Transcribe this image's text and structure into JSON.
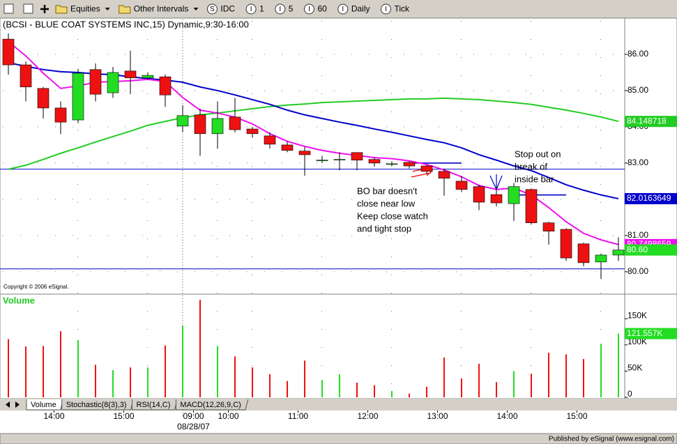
{
  "toolbar": [
    {
      "label": "Equities"
    },
    {
      "label": "Other Intervals"
    },
    {
      "icon": "S",
      "label": "IDC"
    },
    {
      "icon": "I",
      "label": "1"
    },
    {
      "icon": "I",
      "label": "5"
    },
    {
      "icon": "I",
      "label": "60"
    },
    {
      "icon": "I",
      "label": "Daily"
    },
    {
      "icon": "I",
      "label": "Tick"
    }
  ],
  "tabs": [
    "Volume",
    "Stochastic(8(3),3)",
    "RSI(14,C)",
    "MACD(12,26,9,C)"
  ],
  "status": "Published by eSignal (www.esignal.com)",
  "copyright": "Copyright © 2006 eSignal.",
  "chart_data": {
    "type": "candlestick",
    "title": "(BCSI - BLUE COAT SYSTEMS INC,15) Dynamic,9:30-16:00",
    "up_color": "#22dd22",
    "down_color": "#ee1111",
    "categories": [
      null,
      null,
      null,
      "14:00",
      null,
      null,
      null,
      "15:00",
      null,
      null,
      null,
      "09:00",
      null,
      "10:00",
      null,
      null,
      null,
      "11:00",
      null,
      null,
      null,
      "12:00",
      null,
      null,
      null,
      "13:00",
      null,
      null,
      null,
      "14:00",
      null,
      null,
      null,
      "15:00",
      null,
      null
    ],
    "date_label": "08/28/07",
    "candles": [
      {
        "open": 86.42,
        "high": 86.58,
        "low": 85.44,
        "close": 85.71
      },
      {
        "open": 85.71,
        "high": 85.8,
        "low": 84.7,
        "close": 85.1
      },
      {
        "open": 85.06,
        "high": 85.1,
        "low": 84.23,
        "close": 84.52
      },
      {
        "open": 84.52,
        "high": 84.7,
        "low": 83.8,
        "close": 84.13
      },
      {
        "open": 84.19,
        "high": 85.6,
        "low": 84.1,
        "close": 85.48
      },
      {
        "open": 85.58,
        "high": 85.75,
        "low": 84.7,
        "close": 84.9
      },
      {
        "open": 84.94,
        "high": 85.65,
        "low": 84.8,
        "close": 85.5
      },
      {
        "open": 85.54,
        "high": 86.1,
        "low": 84.9,
        "close": 85.35
      },
      {
        "open": 85.35,
        "high": 85.5,
        "low": 85.3,
        "close": 85.42
      },
      {
        "open": 85.38,
        "high": 85.45,
        "low": 84.55,
        "close": 84.88
      },
      {
        "open": 84.02,
        "high": 84.6,
        "low": 83.85,
        "close": 84.31
      },
      {
        "open": 84.33,
        "high": 84.5,
        "low": 83.2,
        "close": 83.81
      },
      {
        "open": 83.81,
        "high": 84.7,
        "low": 83.4,
        "close": 84.23
      },
      {
        "open": 84.27,
        "high": 84.8,
        "low": 83.85,
        "close": 83.92
      },
      {
        "open": 83.94,
        "high": 84.0,
        "low": 83.7,
        "close": 83.81
      },
      {
        "open": 83.75,
        "high": 83.85,
        "low": 83.4,
        "close": 83.52
      },
      {
        "open": 83.5,
        "high": 83.6,
        "low": 83.3,
        "close": 83.35
      },
      {
        "open": 83.33,
        "high": 83.45,
        "low": 82.65,
        "close": 83.23
      },
      {
        "open": 83.08,
        "high": 83.2,
        "low": 83.0,
        "close": 83.08
      },
      {
        "open": 83.1,
        "high": 83.3,
        "low": 82.8,
        "close": 83.1
      },
      {
        "open": 83.29,
        "high": 83.3,
        "low": 82.8,
        "close": 83.08
      },
      {
        "open": 83.1,
        "high": 83.15,
        "low": 82.9,
        "close": 83.0
      },
      {
        "open": 82.98,
        "high": 83.05,
        "low": 82.92,
        "close": 82.98
      },
      {
        "open": 83.02,
        "high": 83.05,
        "low": 82.85,
        "close": 82.92
      },
      {
        "open": 82.92,
        "high": 82.95,
        "low": 82.7,
        "close": 82.77
      },
      {
        "open": 82.77,
        "high": 82.85,
        "low": 82.1,
        "close": 82.58
      },
      {
        "open": 82.5,
        "high": 82.65,
        "low": 82.2,
        "close": 82.27
      },
      {
        "open": 82.35,
        "high": 82.4,
        "low": 81.7,
        "close": 81.92
      },
      {
        "open": 82.13,
        "high": 82.4,
        "low": 81.8,
        "close": 81.9
      },
      {
        "open": 81.88,
        "high": 82.45,
        "low": 81.4,
        "close": 82.35
      },
      {
        "open": 82.27,
        "high": 82.3,
        "low": 81.3,
        "close": 81.35
      },
      {
        "open": 81.35,
        "high": 81.38,
        "low": 80.75,
        "close": 81.12
      },
      {
        "open": 81.17,
        "high": 81.2,
        "low": 80.3,
        "close": 80.38
      },
      {
        "open": 80.77,
        "high": 80.8,
        "low": 80.15,
        "close": 80.25
      },
      {
        "open": 80.27,
        "high": 80.5,
        "low": 79.8,
        "close": 80.46
      },
      {
        "open": 80.46,
        "high": 80.95,
        "low": 80.3,
        "close": 80.6
      }
    ],
    "last_close_label": "80.60",
    "averages": [
      {
        "color": "#22cc22",
        "last_label": "84.148718",
        "values": [
          82.83,
          82.94,
          83.1,
          83.27,
          83.42,
          83.58,
          83.73,
          83.88,
          84.04,
          84.15,
          84.25,
          84.33,
          84.38,
          84.44,
          84.5,
          84.56,
          84.6,
          84.63,
          84.67,
          84.69,
          84.71,
          84.73,
          84.75,
          84.77,
          84.77,
          84.79,
          84.77,
          84.75,
          84.71,
          84.67,
          84.62,
          84.54,
          84.46,
          84.37,
          84.27,
          84.148718
        ]
      },
      {
        "color": "#0000cc",
        "last_label": "82.0163649",
        "values": [
          85.77,
          85.67,
          85.58,
          85.52,
          85.5,
          85.46,
          85.44,
          85.38,
          85.33,
          85.29,
          85.23,
          85.1,
          85.0,
          84.88,
          84.75,
          84.62,
          84.46,
          84.33,
          84.23,
          84.13,
          84.04,
          83.94,
          83.85,
          83.75,
          83.65,
          83.56,
          83.42,
          83.23,
          83.08,
          82.92,
          82.79,
          82.6,
          82.4,
          82.25,
          82.12,
          82.0163649
        ]
      },
      {
        "color": "#ee11ee",
        "last_label": "80.7498659",
        "values": [
          86.35,
          85.96,
          85.48,
          85.06,
          85.13,
          85.23,
          85.25,
          85.27,
          85.31,
          85.25,
          84.81,
          84.46,
          84.38,
          84.27,
          84.08,
          83.81,
          83.6,
          83.46,
          83.35,
          83.27,
          83.21,
          83.15,
          83.12,
          83.06,
          82.96,
          82.81,
          82.62,
          82.38,
          82.27,
          82.31,
          82.12,
          81.77,
          81.38,
          81.06,
          80.88,
          80.7498659
        ]
      }
    ],
    "levels": [
      {
        "value": 82.83,
        "start": 0,
        "end": 35
      },
      {
        "value": 80.08,
        "start": 0,
        "end": 35
      },
      {
        "value": 83.0,
        "start": 23,
        "end": 26
      },
      {
        "value": 82.12,
        "start": 29,
        "end": 32
      }
    ],
    "level_color": "#0000cc",
    "ylim": [
      79.42,
      87
    ],
    "yticks": [
      {
        "value": 86,
        "label": "86.00"
      },
      {
        "value": 85,
        "label": "85.00"
      },
      {
        "value": 84,
        "label": "84.00"
      },
      {
        "value": 83,
        "label": "83.00"
      },
      {
        "value": 82,
        "label": "82.00"
      },
      {
        "value": 81,
        "label": "81.00"
      },
      {
        "value": 80,
        "label": "80.00"
      }
    ],
    "grid": true,
    "volume": {
      "title": "Volume",
      "last_label": "121.557K",
      "values": [
        111000,
        97000,
        98000,
        126000,
        109000,
        62000,
        52000,
        57000,
        57000,
        99000,
        137000,
        186000,
        98000,
        78000,
        57000,
        44000,
        31000,
        70000,
        33000,
        44000,
        28000,
        23000,
        12000,
        7000,
        20000,
        76000,
        36000,
        64000,
        29000,
        50000,
        45000,
        85000,
        82000,
        73000,
        102000,
        121557
      ],
      "ylim": [
        0,
        200000
      ],
      "yticks": [
        {
          "value": 150000,
          "label": "150K"
        },
        {
          "value": 100000,
          "label": "100K"
        },
        {
          "value": 50000,
          "label": "50K"
        },
        0
      ]
    },
    "annotations": [
      [
        "BO bar doesn't",
        "close near low",
        "Keep close watch",
        "and tight stop"
      ],
      [
        "Stop out on",
        "break of",
        "inside bar"
      ]
    ]
  }
}
